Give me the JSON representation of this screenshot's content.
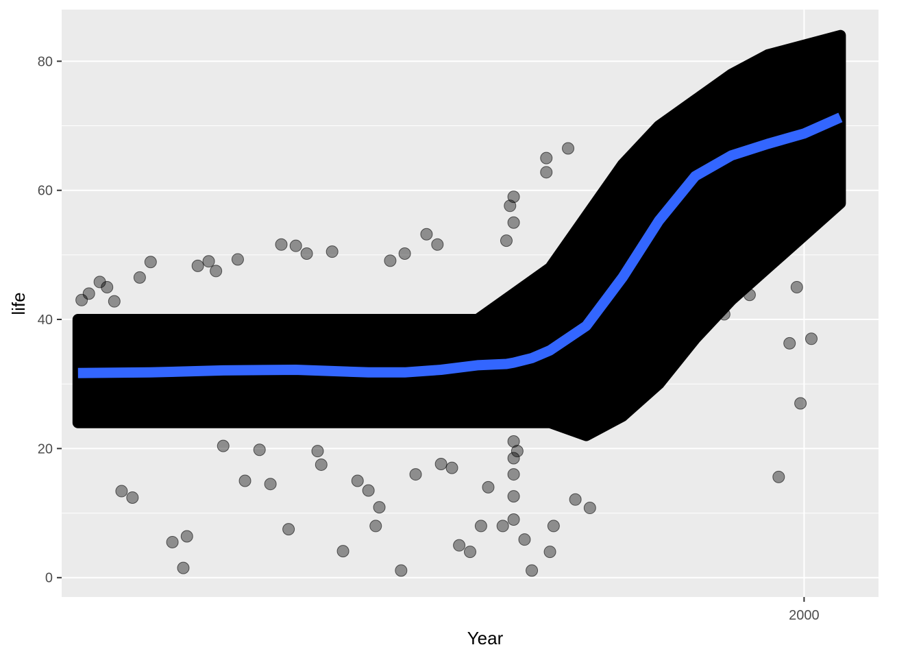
{
  "chart_data": {
    "type": "scatter",
    "title": "",
    "xlabel": "Year",
    "ylabel": "life",
    "x_tick_labels": [
      "2000"
    ],
    "x_ticks": [
      2000
    ],
    "y_tick_labels": [
      "0",
      "20",
      "40",
      "60",
      "80"
    ],
    "y_ticks": [
      0,
      20,
      40,
      60,
      80
    ],
    "xlim": [
      1795.5,
      2020.5
    ],
    "ylim": [
      -3,
      88
    ],
    "grid": true,
    "legend": "none",
    "colors": {
      "panel_background": "#ebebeb",
      "gridline": "#ffffff",
      "points": "#000000",
      "smooth_line": "#3366ff"
    },
    "point_opacity": 0.4,
    "band": {
      "x": [
        1800,
        1850,
        1870,
        1910,
        1920,
        1930,
        1940,
        1950,
        1960,
        1970,
        1980,
        1990,
        2010
      ],
      "low": [
        24,
        24,
        24,
        24,
        24,
        24,
        22,
        25,
        30,
        37,
        43,
        48,
        58
      ],
      "high": [
        40,
        40,
        40,
        40,
        44,
        48,
        56,
        64,
        70,
        74,
        78,
        81,
        84
      ]
    },
    "series": [
      {
        "type": "scatter",
        "x": [
          1801,
          1803,
          1806,
          1808,
          1810,
          1812,
          1815,
          1817,
          1820,
          1826,
          1829,
          1830,
          1833,
          1836,
          1838,
          1840,
          1844,
          1846,
          1850,
          1853,
          1856,
          1858,
          1860,
          1863,
          1866,
          1867,
          1870,
          1873,
          1877,
          1880,
          1882,
          1883,
          1886,
          1889,
          1890,
          1893,
          1896,
          1899,
          1900,
          1903,
          1905,
          1908,
          1911,
          1913,
          1917,
          1918,
          1919,
          1920,
          1920,
          1920,
          1920,
          1920,
          1920,
          1920,
          1921,
          1923,
          1925,
          1929,
          1929,
          1930,
          1931,
          1935,
          1937,
          1941,
          1950,
          1952,
          1966,
          1968,
          1970,
          1978,
          1985,
          1998,
          2002,
          1999,
          1993,
          1996
        ],
        "y": [
          43,
          44,
          45.8,
          45,
          42.8,
          13.4,
          12.4,
          46.5,
          48.9,
          5.5,
          1.5,
          6.4,
          48.3,
          49,
          47.5,
          20.4,
          49.3,
          15,
          19.8,
          14.5,
          51.6,
          7.5,
          51.4,
          50.2,
          19.6,
          17.5,
          50.5,
          4.1,
          15,
          13.5,
          8,
          10.9,
          49.1,
          1.1,
          50.2,
          16,
          53.2,
          51.6,
          17.6,
          17,
          5,
          4,
          8,
          14,
          8,
          52.2,
          57.6,
          9,
          12.6,
          55,
          59,
          21.1,
          16,
          18.5,
          19.6,
          5.9,
          1.1,
          62.8,
          65,
          4,
          8,
          66.5,
          12.1,
          10.8,
          31.9,
          29.5,
          38.6,
          43,
          43.5,
          40.8,
          43.8,
          45,
          37,
          27,
          15.6,
          36.3
        ]
      },
      {
        "type": "line",
        "name": "",
        "x": [
          1800,
          1820,
          1840,
          1860,
          1870,
          1880,
          1890,
          1900,
          1910,
          1918,
          1920,
          1925,
          1930,
          1940,
          1950,
          1960,
          1970,
          1980,
          1990,
          2000,
          2010
        ],
        "y": [
          31.7,
          31.8,
          32.1,
          32.2,
          32.0,
          31.8,
          31.8,
          32.2,
          32.9,
          33.1,
          33.3,
          34.0,
          35.2,
          39.0,
          46.5,
          55.3,
          62.2,
          65.4,
          67.2,
          68.8,
          71.3
        ]
      }
    ]
  }
}
